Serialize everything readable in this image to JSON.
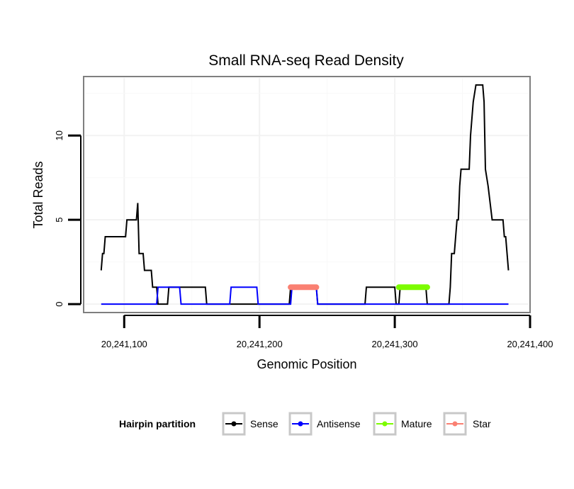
{
  "chart_data": {
    "type": "line",
    "title": "Small RNA-seq Read Density",
    "xlabel": "Genomic Position",
    "ylabel": "Total Reads",
    "xlim": [
      20241070,
      20241400
    ],
    "ylim": [
      -0.5,
      13.5
    ],
    "xticks": [
      20241100,
      20241200,
      20241300,
      20241400
    ],
    "xtick_labels": [
      "20,241,100",
      "20,241,200",
      "20,241,300",
      "20,241,400"
    ],
    "yticks": [
      0,
      5,
      10
    ],
    "ytick_labels": [
      "0",
      "5",
      "10"
    ],
    "grid": true,
    "legend": {
      "title": "Hairpin partition",
      "position": "bottom",
      "entries": [
        {
          "name": "Sense",
          "color": "#000000"
        },
        {
          "name": "Antisense",
          "color": "#0000ff"
        },
        {
          "name": "Mature",
          "color": "#7cfc00"
        },
        {
          "name": "Star",
          "color": "#fa8072"
        }
      ]
    },
    "series": [
      {
        "name": "Sense",
        "color": "#000000",
        "points": [
          [
            20241083,
            2
          ],
          [
            20241084,
            3
          ],
          [
            20241085,
            3
          ],
          [
            20241086,
            4
          ],
          [
            20241101,
            4
          ],
          [
            20241102,
            5
          ],
          [
            20241109,
            5
          ],
          [
            20241110,
            6
          ],
          [
            20241111,
            3
          ],
          [
            20241114,
            3
          ],
          [
            20241115,
            2
          ],
          [
            20241120,
            2
          ],
          [
            20241121,
            1
          ],
          [
            20241124,
            1
          ],
          [
            20241125,
            0
          ],
          [
            20241132,
            0
          ],
          [
            20241133,
            1
          ],
          [
            20241160,
            1
          ],
          [
            20241161,
            0
          ],
          [
            20241222,
            0
          ],
          [
            20241223,
            1
          ],
          [
            20241242,
            1
          ],
          [
            20241243,
            0
          ],
          [
            20241278,
            0
          ],
          [
            20241279,
            1
          ],
          [
            20241300,
            1
          ],
          [
            20241301,
            0
          ],
          [
            20241303,
            0
          ],
          [
            20241304,
            1
          ],
          [
            20241323,
            1
          ],
          [
            20241324,
            0
          ],
          [
            20241340,
            0
          ],
          [
            20241341,
            1
          ],
          [
            20241342,
            3
          ],
          [
            20241344,
            3
          ],
          [
            20241345,
            4
          ],
          [
            20241346,
            5
          ],
          [
            20241347,
            5
          ],
          [
            20241348,
            7
          ],
          [
            20241349,
            8
          ],
          [
            20241355,
            8
          ],
          [
            20241356,
            10
          ],
          [
            20241358,
            12
          ],
          [
            20241360,
            13
          ],
          [
            20241365,
            13
          ],
          [
            20241366,
            12
          ],
          [
            20241367,
            8
          ],
          [
            20241369,
            7
          ],
          [
            20241372,
            5
          ],
          [
            20241380,
            5
          ],
          [
            20241381,
            4
          ],
          [
            20241382,
            4
          ],
          [
            20241384,
            2
          ]
        ]
      },
      {
        "name": "Antisense",
        "color": "#0000ff",
        "points": [
          [
            20241083,
            0
          ],
          [
            20241124,
            0
          ],
          [
            20241125,
            1
          ],
          [
            20241141,
            1
          ],
          [
            20241142,
            0
          ],
          [
            20241178,
            0
          ],
          [
            20241179,
            1
          ],
          [
            20241198,
            1
          ],
          [
            20241199,
            0
          ],
          [
            20241223,
            0
          ],
          [
            20241224,
            1
          ],
          [
            20241242,
            1
          ],
          [
            20241243,
            0
          ],
          [
            20241384,
            0
          ]
        ]
      },
      {
        "name": "Mature",
        "color": "#7cfc00",
        "points": [
          [
            20241303,
            1
          ],
          [
            20241324,
            1
          ]
        ]
      },
      {
        "name": "Star",
        "color": "#fa8072",
        "points": [
          [
            20241223,
            1
          ],
          [
            20241242,
            1
          ]
        ]
      }
    ]
  }
}
